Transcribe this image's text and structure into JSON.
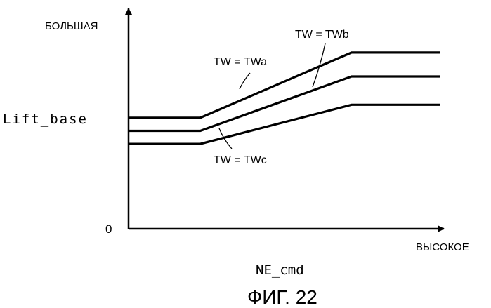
{
  "chart_data": {
    "type": "line",
    "ylabel_top": "БОЛЬШАЯ",
    "ylabel": "Lift_base",
    "y_origin_label": "0",
    "xlabel_end": "ВЫСОКОЕ",
    "xlabel": "NE_cmd",
    "caption": "ФИГ. 22",
    "grid": false,
    "ylim": [
      0,
      1
    ],
    "xlim": [
      0,
      1
    ],
    "series": [
      {
        "name": "TW = TWa",
        "x": [
          0,
          0.23,
          0.715,
          1
        ],
        "y": [
          0.51,
          0.51,
          0.81,
          0.81
        ]
      },
      {
        "name": "TW = TWb",
        "x": [
          0,
          0.23,
          0.715,
          1
        ],
        "y": [
          0.45,
          0.45,
          0.7,
          0.7
        ]
      },
      {
        "name": "TW = TWc",
        "x": [
          0,
          0.23,
          0.715,
          1
        ],
        "y": [
          0.39,
          0.39,
          0.57,
          0.57
        ]
      }
    ]
  }
}
